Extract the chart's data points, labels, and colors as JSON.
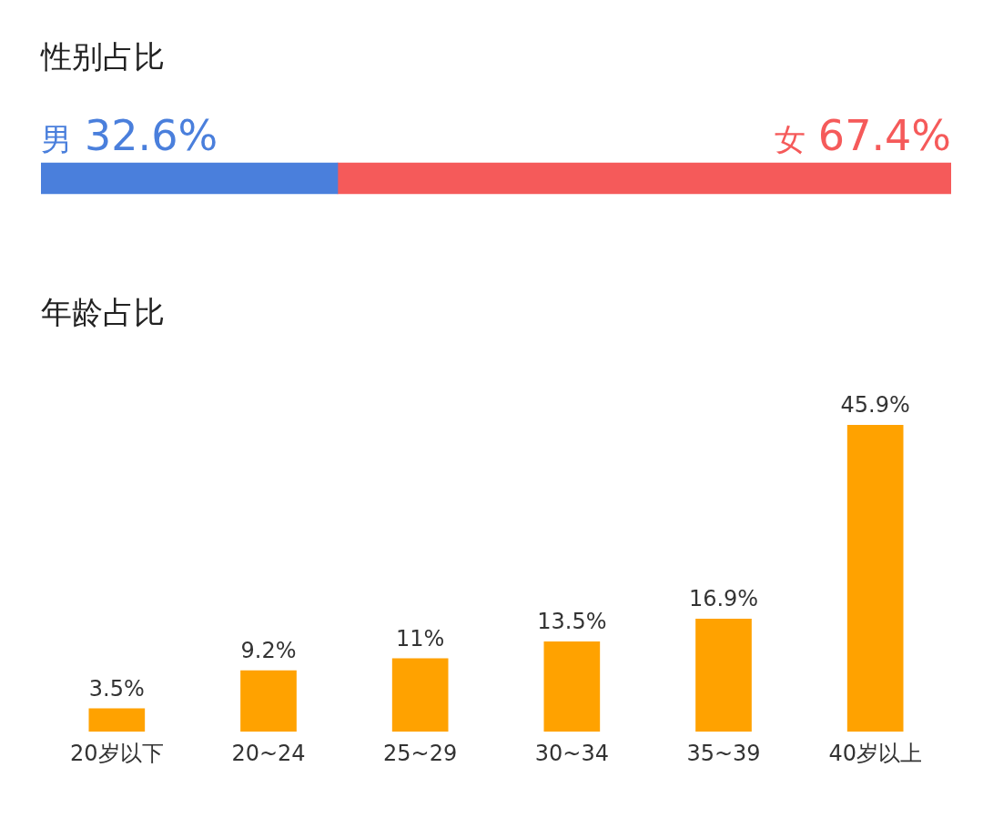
{
  "chart_data": [
    {
      "type": "bar",
      "title": "性别占比",
      "orientation": "horizontal",
      "stacked": true,
      "categories": [
        null
      ],
      "xlim": [
        0,
        100
      ],
      "series": [
        {
          "name": "男",
          "color": "#4a7fdc",
          "values": [
            32.6
          ],
          "value_labels": [
            "32.6%"
          ]
        },
        {
          "name": "女",
          "color": "#f55a5a",
          "values": [
            67.4
          ],
          "value_labels": [
            "67.4%"
          ]
        }
      ]
    },
    {
      "type": "bar",
      "title": "年龄占比",
      "categories": [
        "20岁以下",
        "20~24",
        "25~29",
        "30~34",
        "35~39",
        "40岁以上"
      ],
      "color": "#ffa200",
      "values": [
        3.5,
        9.2,
        11,
        13.5,
        16.9,
        45.9
      ],
      "value_labels": [
        "3.5%",
        "9.2%",
        "11%",
        "13.5%",
        "16.9%",
        "45.9%"
      ]
    }
  ]
}
